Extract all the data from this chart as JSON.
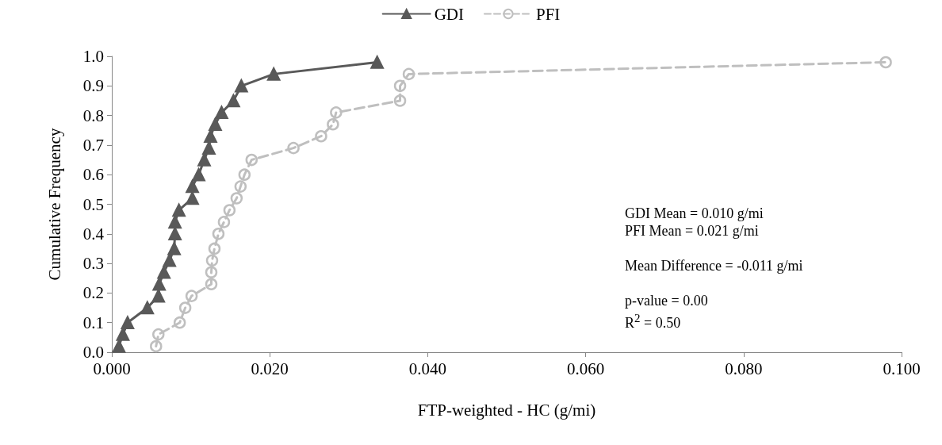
{
  "chart_data": {
    "type": "line",
    "xlabel": "FTP-weighted - HC (g/mi)",
    "ylabel": "Cumulative Frequency",
    "annotations": [
      "GDI Mean = 0.010 g/mi",
      "PFI Mean = 0.021 g/mi",
      "Mean Difference = -0.011 g/mi",
      "p-value = 0.00",
      "R$^{2}$ = 0.50"
    ],
    "series": [
      {
        "name": "GDI",
        "color": "#595959",
        "marker": "triangle",
        "line_style": "solid",
        "x": [
          0.0009,
          0.0014,
          0.002,
          0.0045,
          0.0059,
          0.006,
          0.0066,
          0.0073,
          0.0079,
          0.008,
          0.008,
          0.0085,
          0.0102,
          0.0102,
          0.011,
          0.0117,
          0.0123,
          0.0125,
          0.0131,
          0.0139,
          0.0154,
          0.0164,
          0.0205,
          0.0336
        ],
        "values": [
          0.02,
          0.06,
          0.1,
          0.15,
          0.19,
          0.23,
          0.27,
          0.31,
          0.35,
          0.4,
          0.44,
          0.48,
          0.52,
          0.56,
          0.6,
          0.65,
          0.69,
          0.73,
          0.77,
          0.81,
          0.85,
          0.9,
          0.94,
          0.98
        ]
      },
      {
        "name": "PFI",
        "color": "#bfbfbf",
        "marker": "circle",
        "line_style": "dashed",
        "x": [
          0.0056,
          0.0059,
          0.0086,
          0.0093,
          0.0101,
          0.0126,
          0.0126,
          0.0127,
          0.013,
          0.0135,
          0.0142,
          0.0149,
          0.0158,
          0.0163,
          0.0168,
          0.0177,
          0.023,
          0.0265,
          0.028,
          0.0284,
          0.0365,
          0.0365,
          0.0376,
          0.098
        ],
        "values": [
          0.02,
          0.06,
          0.1,
          0.15,
          0.19,
          0.23,
          0.27,
          0.31,
          0.35,
          0.4,
          0.44,
          0.48,
          0.52,
          0.56,
          0.6,
          0.65,
          0.69,
          0.73,
          0.77,
          0.81,
          0.85,
          0.9,
          0.94,
          0.98
        ]
      }
    ],
    "xlim": [
      0,
      0.1
    ],
    "xticks": [
      {
        "value": 0,
        "label": "0.000"
      },
      {
        "value": 0.02,
        "label": "0.020"
      },
      {
        "value": 0.04,
        "label": "0.040"
      },
      {
        "value": 0.06,
        "label": "0.060"
      },
      {
        "value": 0.08,
        "label": "0.080"
      },
      {
        "value": 0.1,
        "label": "0.100"
      }
    ],
    "ylim": [
      0,
      1
    ],
    "yticks": [
      {
        "value": 0,
        "label": "0.0"
      },
      {
        "value": 0.1,
        "label": "0.1"
      },
      {
        "value": 0.2,
        "label": "0.2"
      },
      {
        "value": 0.3,
        "label": "0.3"
      },
      {
        "value": 0.4,
        "label": "0.4"
      },
      {
        "value": 0.5,
        "label": "0.5"
      },
      {
        "value": 0.6,
        "label": "0.6"
      },
      {
        "value": 0.7,
        "label": "0.7"
      },
      {
        "value": 0.8,
        "label": "0.8"
      },
      {
        "value": 0.9,
        "label": "0.9"
      },
      {
        "value": 1,
        "label": "1.0"
      }
    ],
    "grid": false,
    "legend": "top"
  }
}
